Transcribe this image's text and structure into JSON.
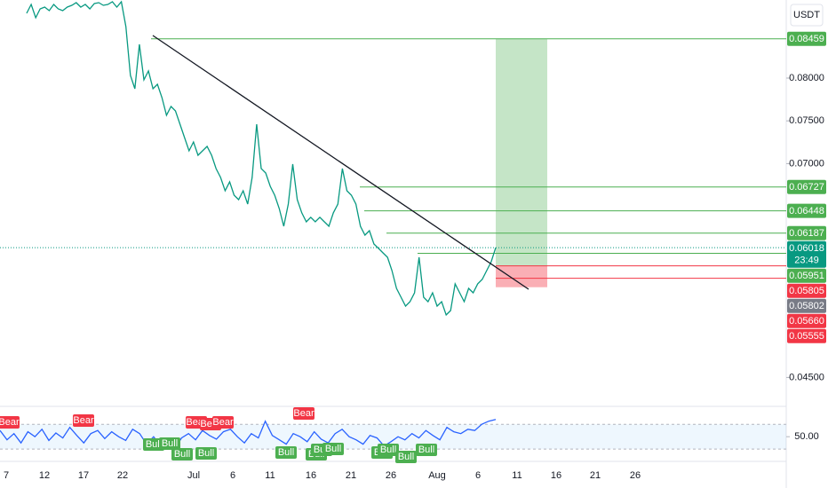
{
  "header": {
    "currency": "USDT"
  },
  "chart_data": [
    {
      "type": "line",
      "color": "#089981",
      "x_labels": [
        "7",
        "12",
        "17",
        "22",
        "Jul",
        "6",
        "11",
        "16",
        "21",
        "26",
        "Aug",
        "6",
        "11",
        "16",
        "21",
        "26"
      ],
      "values": [
        0.08757,
        0.08861,
        0.08706,
        0.08809,
        0.0883,
        0.08789,
        0.08861,
        0.08809,
        0.08789,
        0.0883,
        0.08851,
        0.08882,
        0.0883,
        0.08861,
        0.08809,
        0.08872,
        0.08882,
        0.08851,
        0.08861,
        0.08892,
        0.0883,
        0.08892,
        0.08602,
        0.08031,
        0.07876,
        0.08394,
        0.07979,
        0.08083,
        0.07876,
        0.07928,
        0.07772,
        0.07565,
        0.07668,
        0.07616,
        0.07461,
        0.07305,
        0.0715,
        0.07253,
        0.07098,
        0.0715,
        0.07201,
        0.07098,
        0.06942,
        0.06838,
        0.06683,
        0.06787,
        0.06631,
        0.06579,
        0.06683,
        0.06527,
        0.06838,
        0.07461,
        0.06942,
        0.0689,
        0.06735,
        0.06631,
        0.06475,
        0.06268,
        0.06527,
        0.06994,
        0.06579,
        0.06424,
        0.0632,
        0.06372,
        0.0632,
        0.06372,
        0.0632,
        0.06268,
        0.06424,
        0.06527,
        0.06942,
        0.06683,
        0.06631,
        0.06527,
        0.06268,
        0.06164,
        0.06216,
        0.0606,
        0.06009,
        0.05957,
        0.05905,
        0.05749,
        0.05542,
        0.05438,
        0.05334,
        0.05386,
        0.0549,
        0.05905,
        0.05438,
        0.05386,
        0.0549,
        0.05334,
        0.05386,
        0.05231,
        0.05282,
        0.05594,
        0.0549,
        0.05386,
        0.05542,
        0.0549,
        0.05594,
        0.05646,
        0.05749,
        0.05853,
        0.06018
      ],
      "ylim": [
        0.04193,
        0.08913
      ],
      "yticks": [
        {
          "value": 0.08,
          "label": "0.08000"
        },
        {
          "value": 0.075,
          "label": "0.07500"
        },
        {
          "value": 0.07,
          "label": "0.07000"
        },
        {
          "value": 0.045,
          "label": "0.04500"
        }
      ],
      "price_tags": [
        {
          "value": 0.08459,
          "label": "0.08459",
          "color": "#4caf50"
        },
        {
          "value": 0.06727,
          "label": "0.06727",
          "color": "#4caf50"
        },
        {
          "value": 0.06448,
          "label": "0.06448",
          "color": "#4caf50"
        },
        {
          "value": 0.06187,
          "label": "0.06187",
          "color": "#4caf50"
        },
        {
          "value": 0.06018,
          "label": "0.06018",
          "countdown": "23:49",
          "color": "#089981"
        },
        {
          "value": 0.05951,
          "label": "0.05951",
          "color": "#4caf50"
        },
        {
          "value": 0.05805,
          "label": "0.05805",
          "color": "#f23645"
        },
        {
          "value": 0.05802,
          "label": "0.05802",
          "color": "#787b86"
        },
        {
          "value": 0.0566,
          "label": "0.05660",
          "color": "#f23645"
        },
        {
          "value": 0.05555,
          "label": "0.05555",
          "color": "#f23645"
        }
      ]
    },
    {
      "type": "line",
      "color": "#2962ff",
      "values": [
        60,
        45,
        55,
        40,
        58,
        50,
        62,
        44,
        56,
        48,
        65,
        52,
        40,
        55,
        60,
        47,
        58,
        50,
        44,
        62,
        55,
        38,
        50,
        35,
        42,
        30,
        48,
        55,
        45,
        60,
        52,
        46,
        58,
        62,
        50,
        40,
        55,
        48,
        75,
        52,
        45,
        38,
        55,
        50,
        42,
        58,
        46,
        40,
        55,
        62,
        50,
        45,
        38,
        52,
        48,
        35,
        42,
        50,
        45,
        55,
        48,
        60,
        52,
        45,
        65,
        58,
        55,
        62,
        60,
        70,
        75,
        78
      ],
      "ylim": [
        13,
        99
      ],
      "yticks": [
        {
          "value": 50,
          "label": "50.00"
        }
      ],
      "band": [
        30,
        70
      ],
      "signals": [
        {
          "label": "Bear"
        },
        {
          "label": "Bear"
        },
        {
          "label": "Bull"
        },
        {
          "label": "Bull"
        },
        {
          "label": "Bull"
        },
        {
          "label": "Bear"
        },
        {
          "label": "Bull"
        },
        {
          "label": "Bear"
        },
        {
          "label": "Bear"
        },
        {
          "label": "Bull"
        },
        {
          "label": "Bear"
        },
        {
          "label": "Bull"
        },
        {
          "label": "Bull"
        },
        {
          "label": "Bull"
        },
        {
          "label": "Bull"
        },
        {
          "label": "Bull"
        },
        {
          "label": "Bull"
        },
        {
          "label": "Bull"
        }
      ]
    }
  ]
}
